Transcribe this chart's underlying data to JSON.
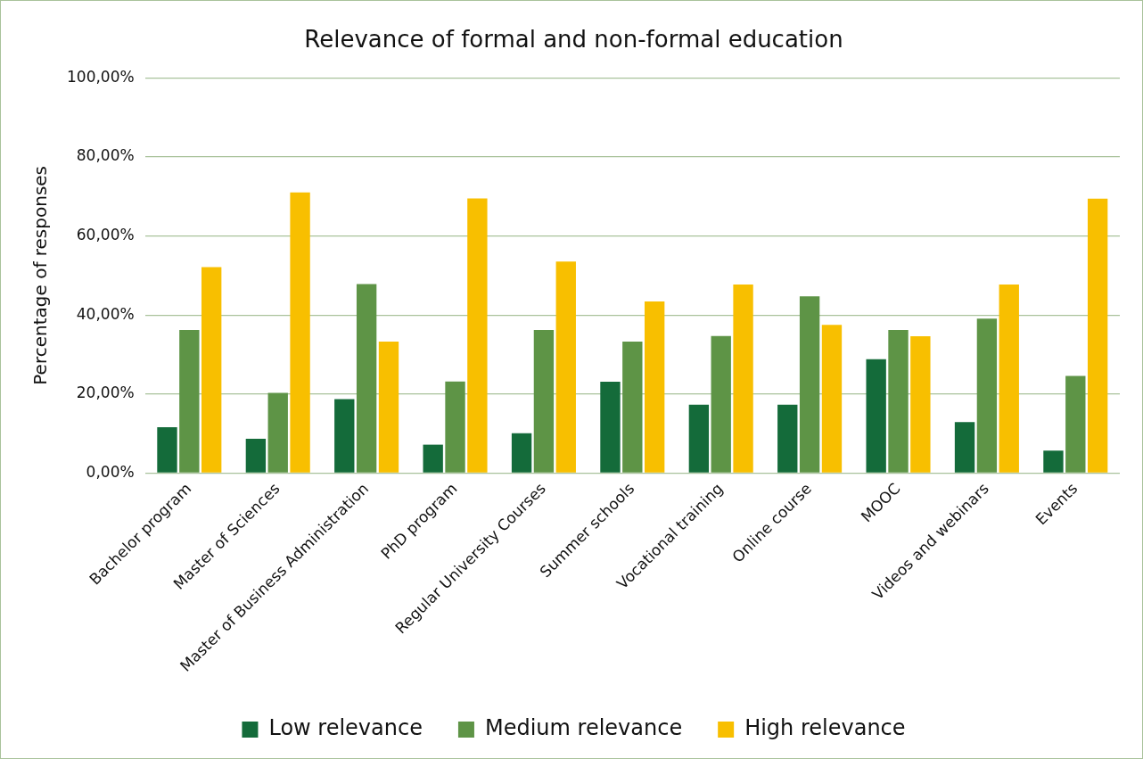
{
  "chart_data": {
    "type": "bar",
    "title": "Relevance of formal and non-formal education",
    "ylabel": "Percentage of responses",
    "categories": [
      "Bachelor program",
      "Master of Sciences",
      "Master of Business Administration",
      "PhD program",
      "Regular University Courses",
      "Summer schools",
      "Vocational training",
      "Online course",
      "MOOC",
      "Videos and webinars",
      "Events"
    ],
    "series": [
      {
        "name": "Low relevance",
        "color": "#146b3a",
        "values": [
          11.6,
          8.7,
          18.7,
          7.2,
          10.1,
          23.1,
          17.3,
          17.3,
          28.8,
          12.9,
          5.7
        ]
      },
      {
        "name": "Medium relevance",
        "color": "#5e9446",
        "values": [
          36.2,
          20.3,
          47.8,
          23.2,
          36.2,
          33.3,
          34.7,
          44.7,
          36.2,
          39.1,
          24.6
        ]
      },
      {
        "name": "High relevance",
        "color": "#f8bf00",
        "values": [
          52.1,
          71.0,
          33.3,
          69.5,
          53.5,
          43.4,
          47.7,
          37.5,
          34.6,
          47.7,
          69.4
        ]
      }
    ],
    "ylim": [
      0,
      100
    ],
    "yticks": [
      {
        "value": 0,
        "label": "0,00%"
      },
      {
        "value": 20,
        "label": "20,00%"
      },
      {
        "value": 40,
        "label": "40,00%"
      },
      {
        "value": 60,
        "label": "60,00%"
      },
      {
        "value": 80,
        "label": "80,00%"
      },
      {
        "value": 100,
        "label": "100,00%"
      }
    ],
    "grid": "y",
    "legend": "bottom"
  }
}
